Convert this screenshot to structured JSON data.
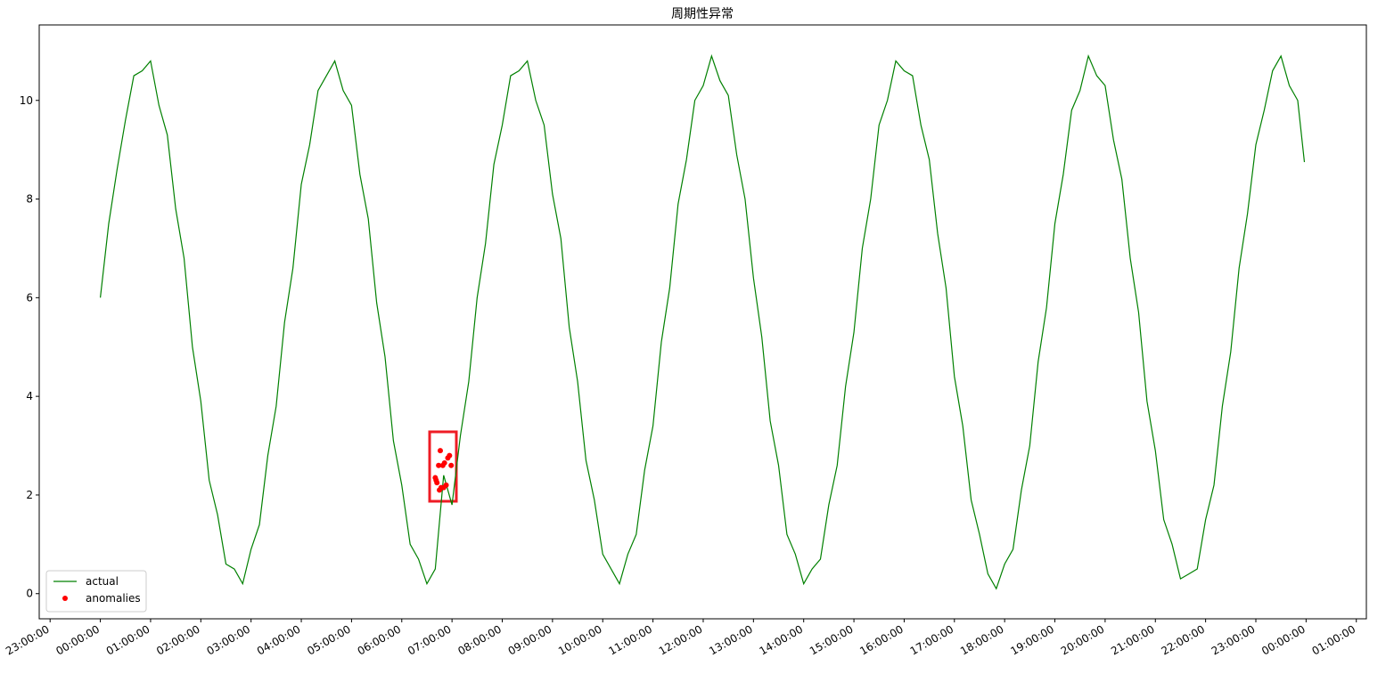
{
  "chart_data": {
    "type": "line",
    "title": "周期性异常",
    "xlim": [
      -73,
      1512
    ],
    "ylim": [
      -0.51,
      11.53
    ],
    "xticks": [
      {
        "value": -60,
        "label": "23:00:00"
      },
      {
        "value": 0,
        "label": "00:00:00"
      },
      {
        "value": 60,
        "label": "01:00:00"
      },
      {
        "value": 120,
        "label": "02:00:00"
      },
      {
        "value": 180,
        "label": "03:00:00"
      },
      {
        "value": 240,
        "label": "04:00:00"
      },
      {
        "value": 300,
        "label": "05:00:00"
      },
      {
        "value": 360,
        "label": "06:00:00"
      },
      {
        "value": 420,
        "label": "07:00:00"
      },
      {
        "value": 480,
        "label": "08:00:00"
      },
      {
        "value": 540,
        "label": "09:00:00"
      },
      {
        "value": 600,
        "label": "10:00:00"
      },
      {
        "value": 660,
        "label": "11:00:00"
      },
      {
        "value": 720,
        "label": "12:00:00"
      },
      {
        "value": 780,
        "label": "13:00:00"
      },
      {
        "value": 840,
        "label": "14:00:00"
      },
      {
        "value": 900,
        "label": "15:00:00"
      },
      {
        "value": 960,
        "label": "16:00:00"
      },
      {
        "value": 1020,
        "label": "17:00:00"
      },
      {
        "value": 1080,
        "label": "18:00:00"
      },
      {
        "value": 1140,
        "label": "19:00:00"
      },
      {
        "value": 1200,
        "label": "20:00:00"
      },
      {
        "value": 1260,
        "label": "21:00:00"
      },
      {
        "value": 1320,
        "label": "22:00:00"
      },
      {
        "value": 1380,
        "label": "23:00:00"
      },
      {
        "value": 1440,
        "label": "00:00:00"
      },
      {
        "value": 1500,
        "label": "01:00:00"
      }
    ],
    "yticks": [
      0,
      2,
      4,
      6,
      8,
      10
    ],
    "grid": false,
    "legend": "lower left",
    "series": [
      {
        "name": "actual",
        "color": "#008000",
        "kind": "line",
        "x": [
          0,
          10,
          20,
          30,
          40,
          50,
          60,
          70,
          80,
          90,
          100,
          110,
          120,
          130,
          140,
          150,
          160,
          170,
          180,
          190,
          200,
          210,
          220,
          230,
          240,
          250,
          260,
          270,
          280,
          290,
          300,
          310,
          320,
          330,
          340,
          350,
          360,
          370,
          380,
          390,
          400,
          410,
          420,
          430,
          440,
          450,
          460,
          470,
          480,
          490,
          500,
          510,
          520,
          530,
          540,
          550,
          560,
          570,
          580,
          590,
          600,
          610,
          620,
          630,
          640,
          650,
          660,
          670,
          680,
          690,
          700,
          710,
          720,
          730,
          740,
          750,
          760,
          770,
          780,
          790,
          800,
          810,
          820,
          830,
          840,
          850,
          860,
          870,
          880,
          890,
          900,
          910,
          920,
          930,
          940,
          950,
          960,
          970,
          980,
          990,
          1000,
          1010,
          1020,
          1030,
          1040,
          1050,
          1060,
          1070,
          1080,
          1090,
          1100,
          1110,
          1120,
          1130,
          1140,
          1150,
          1160,
          1170,
          1180,
          1190,
          1200,
          1210,
          1220,
          1230,
          1240,
          1250,
          1260,
          1270,
          1280,
          1290,
          1300,
          1310,
          1320,
          1330,
          1340,
          1350,
          1360,
          1370,
          1380,
          1390,
          1400,
          1410,
          1420,
          1430,
          1438
        ],
        "values": [
          6.0,
          7.5,
          8.6,
          9.6,
          10.5,
          10.6,
          10.8,
          9.9,
          9.3,
          7.8,
          6.8,
          5.0,
          3.9,
          2.3,
          1.6,
          0.6,
          0.5,
          0.2,
          0.9,
          1.4,
          2.8,
          3.8,
          5.5,
          6.6,
          8.3,
          9.1,
          10.2,
          10.5,
          10.8,
          10.2,
          9.9,
          8.5,
          7.6,
          5.9,
          4.8,
          3.1,
          2.2,
          1.0,
          0.7,
          0.2,
          0.5,
          2.4,
          1.8,
          3.2,
          4.3,
          6.0,
          7.1,
          8.7,
          9.5,
          10.5,
          10.6,
          10.8,
          10.0,
          9.5,
          8.1,
          7.2,
          5.4,
          4.3,
          2.7,
          1.9,
          0.8,
          0.5,
          0.2,
          0.8,
          1.2,
          2.5,
          3.4,
          5.1,
          6.2,
          7.9,
          8.8,
          10.0,
          10.3,
          10.9,
          10.4,
          10.1,
          8.9,
          8.0,
          6.4,
          5.2,
          3.5,
          2.6,
          1.2,
          0.8,
          0.2,
          0.5,
          0.7,
          1.8,
          2.6,
          4.2,
          5.3,
          7.0,
          8.0,
          9.5,
          10.0,
          10.8,
          10.6,
          10.5,
          9.5,
          8.8,
          7.3,
          6.2,
          4.4,
          3.4,
          1.9,
          1.2,
          0.4,
          0.1,
          0.6,
          0.9,
          2.1,
          3.0,
          4.7,
          5.8,
          7.5,
          8.5,
          9.8,
          10.2,
          10.9,
          10.5,
          10.3,
          9.2,
          8.4,
          6.8,
          5.7,
          3.9,
          2.9,
          1.5,
          1.0,
          0.3,
          0.4,
          0.5,
          1.5,
          2.2,
          3.8,
          4.9,
          6.6,
          7.7,
          9.1,
          9.8,
          10.6,
          10.9,
          10.3,
          10.0,
          8.75
        ]
      },
      {
        "name": "anomalies",
        "color": "#ff0000",
        "kind": "points",
        "x": [
          400,
          401,
          402,
          404,
          405,
          406,
          407,
          409,
          410,
          411,
          413,
          415,
          417,
          419
        ],
        "values": [
          2.35,
          2.3,
          2.25,
          2.6,
          2.1,
          2.9,
          2.15,
          2.6,
          2.15,
          2.65,
          2.2,
          2.75,
          2.8,
          2.6
        ]
      }
    ]
  }
}
